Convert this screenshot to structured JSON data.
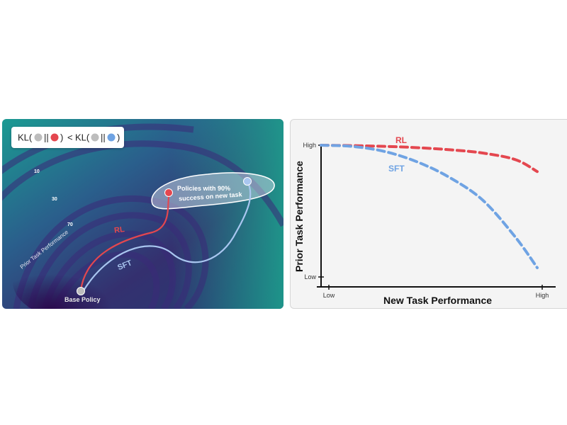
{
  "left_panel": {
    "legend": {
      "kl_prefix_1": "KL(",
      "bars": "||",
      "close_1": ")",
      "less_than": "<",
      "kl_prefix_2": "KL(",
      "close_2": ")"
    },
    "contour_labels": [
      "10",
      "30",
      "70"
    ],
    "axis_label": "Prior Task Performance",
    "region_label_line1": "Policies with 90%",
    "region_label_line2": "success on new task",
    "rl_label": "RL",
    "sft_label": "SFT",
    "base_label": "Base Policy"
  },
  "chart_data": {
    "type": "line",
    "xlabel": "New Task Performance",
    "ylabel": "Prior Task Performance",
    "x_ticks": [
      "Low",
      "High"
    ],
    "y_ticks": [
      "Low",
      "High"
    ],
    "xlim": [
      0,
      1
    ],
    "ylim": [
      0,
      1
    ],
    "series": [
      {
        "name": "RL",
        "color": "#e4474f",
        "style": "dashed",
        "points": [
          [
            0.0,
            1.0
          ],
          [
            0.2,
            0.995
          ],
          [
            0.4,
            0.985
          ],
          [
            0.6,
            0.965
          ],
          [
            0.75,
            0.94
          ],
          [
            0.9,
            0.89
          ],
          [
            1.0,
            0.8
          ]
        ]
      },
      {
        "name": "SFT",
        "color": "#6fa3e3",
        "style": "dashed",
        "points": [
          [
            0.0,
            1.0
          ],
          [
            0.15,
            0.99
          ],
          [
            0.3,
            0.95
          ],
          [
            0.45,
            0.87
          ],
          [
            0.6,
            0.75
          ],
          [
            0.75,
            0.58
          ],
          [
            0.9,
            0.3
          ],
          [
            1.0,
            0.07
          ]
        ]
      }
    ],
    "grid": false,
    "legend": "inline labels"
  },
  "colors": {
    "rl": "#e4474f",
    "sft": "#6fa3e3",
    "base": "#bdbdbd"
  }
}
